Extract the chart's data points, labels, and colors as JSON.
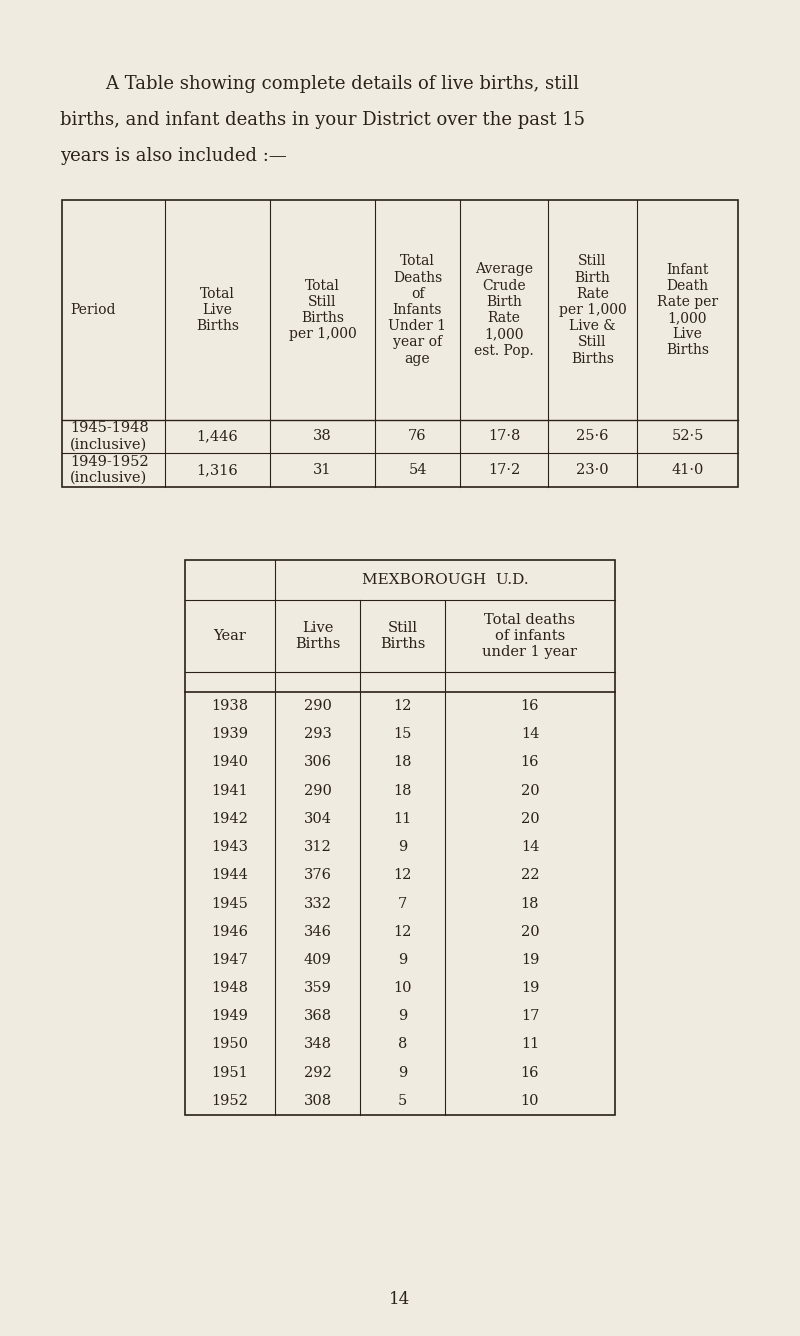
{
  "bg_color": "#f0ebe0",
  "text_color": "#2a2218",
  "intro_lines": [
    [
      "        A Table showing complete details of live births, still",
      "left"
    ],
    [
      "births, and infant deaths in your District over the past 15",
      "left"
    ],
    [
      "years is also included :—",
      "left"
    ]
  ],
  "table1": {
    "col_headers": [
      "Period",
      "Total\nLive\nBirths",
      "Total\nStill\nBirths\nper 1,000",
      "Total\nDeaths\nof\nInfants\nUnder 1\nyear of\nage",
      "Average\nCrude\nBirth\nRate\n1,000\nest. Pop.",
      "Still\nBirth\nRate\nper 1,000\nLive &\nStill\nBirths",
      "Infant\nDeath\nRate per\n1,000\nLive\nBirths"
    ],
    "rows": [
      [
        "1945-1948\n(inclusive)",
        "1,446",
        "38",
        "76",
        "17·8",
        "25·6",
        "52·5"
      ],
      [
        "1949-1952\n(inclusive)",
        "1,316",
        "31",
        "54",
        "17·2",
        "23·0",
        "41·0"
      ]
    ]
  },
  "table2": {
    "merged_header": "MEXBOROUGH  U.D.",
    "col_headers": [
      "Year",
      "Live\nBirths",
      "Still\nBirths",
      "Total deaths\nof infants\nunder 1 year"
    ],
    "rows": [
      [
        "1938",
        "290",
        "12",
        "16"
      ],
      [
        "1939",
        "293",
        "15",
        "14"
      ],
      [
        "1940",
        "306",
        "18",
        "16"
      ],
      [
        "1941",
        "290",
        "18",
        "20"
      ],
      [
        "1942",
        "304",
        "11",
        "20"
      ],
      [
        "1943",
        "312",
        "9",
        "14"
      ],
      [
        "1944",
        "376",
        "12",
        "22"
      ],
      [
        "1945",
        "332",
        "7",
        "18"
      ],
      [
        "1946",
        "346",
        "12",
        "20"
      ],
      [
        "1947",
        "409",
        "9",
        "19"
      ],
      [
        "1948",
        "359",
        "10",
        "19"
      ],
      [
        "1949",
        "368",
        "9",
        "17"
      ],
      [
        "1950",
        "348",
        "8",
        "11"
      ],
      [
        "1951",
        "292",
        "9",
        "16"
      ],
      [
        "1952",
        "308",
        "5",
        "10"
      ]
    ]
  },
  "page_number": "14",
  "font_size_intro": 13.0,
  "font_size_table1_header": 10.0,
  "font_size_table1_data": 10.5,
  "font_size_table2_header": 10.5,
  "font_size_table2_data": 10.5,
  "font_size_page": 12.0
}
